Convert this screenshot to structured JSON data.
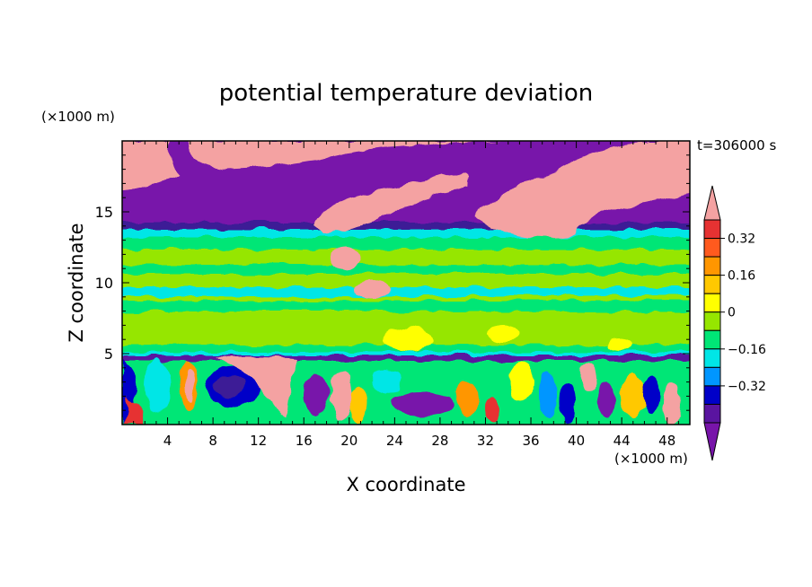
{
  "chart_data": {
    "type": "heatmap",
    "title": "potential temperature deviation",
    "xlabel": "X coordinate",
    "ylabel": "Z coordinate",
    "x_unit": "(×1000 m)",
    "y_unit": "(×1000 m)",
    "time_label": "t=306000 s",
    "xlim": [
      0,
      50
    ],
    "ylim": [
      0,
      20
    ],
    "x_ticks": [
      4,
      8,
      12,
      16,
      20,
      24,
      28,
      32,
      36,
      40,
      44,
      48
    ],
    "y_ticks": [
      5,
      10,
      15
    ],
    "colorbar": {
      "levels": [
        -0.48,
        -0.4,
        -0.32,
        -0.24,
        -0.16,
        -0.08,
        0,
        0.08,
        0.16,
        0.24,
        0.32,
        0.4
      ],
      "labeled_levels": [
        0.32,
        0.16,
        0,
        -0.16,
        -0.32
      ],
      "labels": [
        "0.32",
        "0.16",
        "0",
        "−0.16",
        "−0.32"
      ],
      "colors_top_to_bottom": [
        "#f4a2a2",
        "#e63232",
        "#ff5a1e",
        "#ff9600",
        "#ffc800",
        "#ffff00",
        "#96e600",
        "#00e676",
        "#00e6e6",
        "#0096ff",
        "#0000c8",
        "#5a14a0",
        "#7814aa"
      ],
      "extend": "both"
    },
    "field_description": "Upper layer 14–20 km dominated by purple (negative) with pink (positive) clouds; middle layer 5–14 km mostly green/light green near zero; lower layer 0–5 km strongly mixed cells of blue, purple, pink, red, yellow."
  }
}
